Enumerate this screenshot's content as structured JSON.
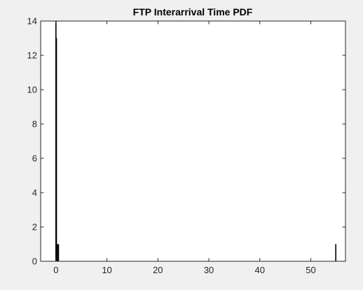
{
  "figure": {
    "background": "#f0f0f0"
  },
  "chart_data": {
    "type": "bar",
    "title": "FTP Interarrival Time PDF",
    "xlabel": "",
    "ylabel": "",
    "xlim": [
      -3,
      56.8
    ],
    "ylim": [
      0,
      14
    ],
    "xticks": [
      0,
      10,
      20,
      30,
      40,
      50
    ],
    "yticks": [
      0,
      2,
      4,
      6,
      8,
      10,
      12,
      14
    ],
    "grid": false,
    "legend": "none",
    "bar_color": "#000000",
    "bars": [
      {
        "x": 0.0,
        "value": 14
      },
      {
        "x": 0.1,
        "value": 13
      },
      {
        "x": 0.3,
        "value": 1
      },
      {
        "x": 0.5,
        "value": 1
      },
      {
        "x": 54.9,
        "value": 1
      }
    ]
  }
}
